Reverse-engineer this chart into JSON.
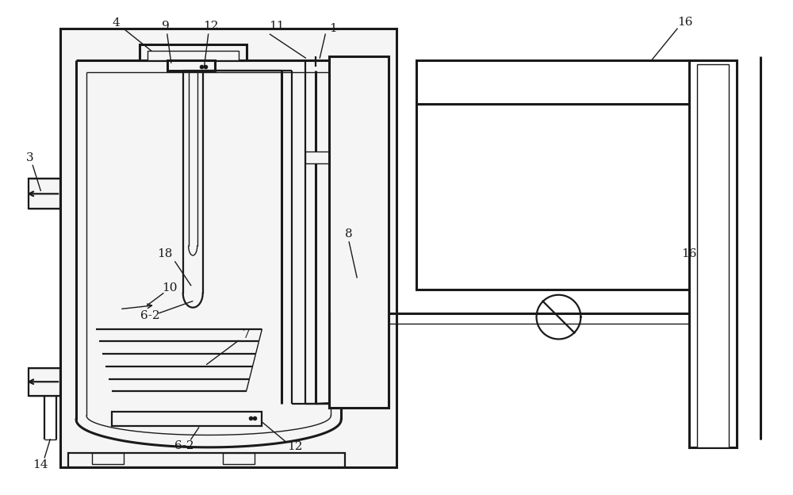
{
  "bg_color": "#ffffff",
  "lc": "#1a1a1a",
  "lw_thin": 1.0,
  "lw_med": 1.6,
  "lw_thick": 2.2,
  "fig_w": 10.0,
  "fig_h": 6.24,
  "dpi": 100
}
